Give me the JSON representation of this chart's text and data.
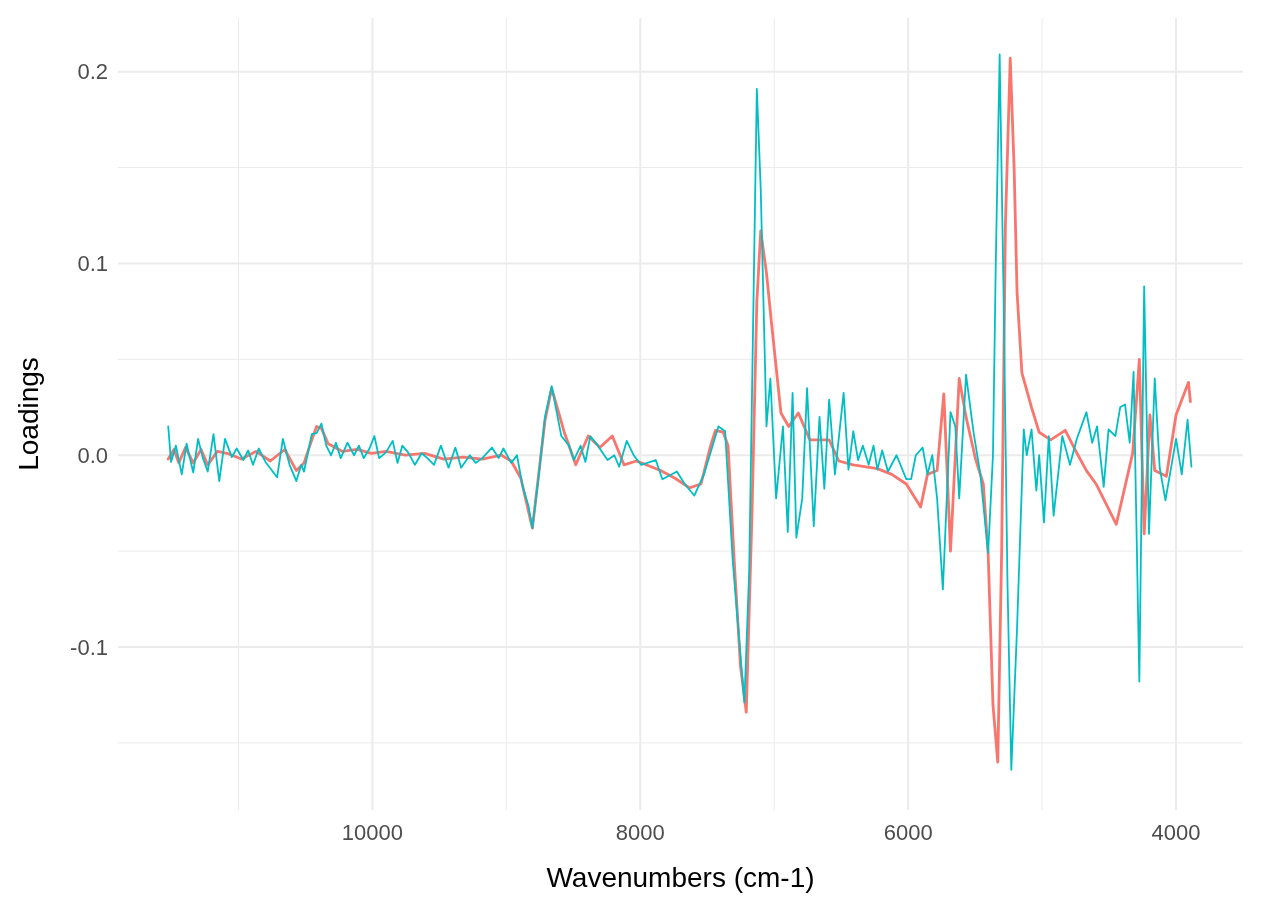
{
  "chart_data": {
    "type": "line",
    "xlabel": "Wavenumbers (cm-1)",
    "ylabel": "Loadings",
    "grid": true,
    "marker": "none",
    "line_style": "solid",
    "xlim": [
      11900,
      3500
    ],
    "ylim": [
      -0.185,
      0.228
    ],
    "xticks": [
      {
        "value": 11000,
        "label": null
      },
      {
        "value": 10000,
        "label": "10000"
      },
      {
        "value": 9000,
        "label": null
      },
      {
        "value": 8000,
        "label": "8000"
      },
      {
        "value": 7000,
        "label": null
      },
      {
        "value": 6000,
        "label": "6000"
      },
      {
        "value": 5000,
        "label": null
      },
      {
        "value": 4000,
        "label": "4000"
      }
    ],
    "yticks": [
      {
        "value": -0.15,
        "label": null
      },
      {
        "value": -0.1,
        "label": "-0.1"
      },
      {
        "value": -0.05,
        "label": null
      },
      {
        "value": 0,
        "label": "0.0"
      },
      {
        "value": 0.05,
        "label": null
      },
      {
        "value": 0.1,
        "label": "0.1"
      },
      {
        "value": 0.15,
        "label": null
      },
      {
        "value": 0.2,
        "label": "0.2"
      }
    ],
    "series": [
      {
        "color": "#f8766d",
        "x": [
          11525,
          11482,
          11446,
          11396,
          11338,
          11280,
          11230,
          11158,
          11086,
          10978,
          10870,
          10763,
          10655,
          10568,
          10511,
          10453,
          10417,
          10381,
          10331,
          10223,
          10115,
          10007,
          9899,
          9755,
          9611,
          9468,
          9324,
          9180,
          9036,
          8964,
          8892,
          8806,
          8712,
          8662,
          8568,
          8482,
          8389,
          8302,
          8209,
          8122,
          8029,
          7957,
          7849,
          7741,
          7633,
          7547,
          7475,
          7439,
          7381,
          7345,
          7295,
          7252,
          7209,
          7166,
          7130,
          7101,
          7058,
          7022,
          6950,
          6892,
          6820,
          6734,
          6590,
          6518,
          6410,
          6230,
          6122,
          6014,
          5907,
          5856,
          5784,
          5734,
          5684,
          5619,
          5568,
          5497,
          5439,
          5403,
          5367,
          5331,
          5302,
          5274,
          5238,
          5209,
          5187,
          5151,
          5079,
          5022,
          4936,
          4827,
          4755,
          4669,
          4597,
          4446,
          4324,
          4274,
          4238,
          4195,
          4159,
          4072,
          4000,
          3907,
          3893
        ],
        "values": [
          -0.002,
          0.003,
          -0.004,
          0.004,
          -0.004,
          0.003,
          -0.005,
          0.002,
          0.001,
          -0.002,
          0.002,
          -0.003,
          0.003,
          -0.008,
          -0.004,
          0.008,
          0.015,
          0.014,
          0.006,
          0.002,
          0.003,
          0.001,
          0.002,
          0,
          0.001,
          -0.002,
          -0.001,
          -0.002,
          0,
          -0.003,
          -0.012,
          -0.038,
          0.018,
          0.035,
          0.012,
          -0.005,
          0.01,
          0.004,
          0.01,
          -0.005,
          -0.003,
          -0.005,
          -0.008,
          -0.012,
          -0.017,
          -0.015,
          0.005,
          0.013,
          0.012,
          0.005,
          -0.06,
          -0.11,
          -0.134,
          -0.03,
          0.08,
          0.117,
          0.095,
          0.07,
          0.022,
          0.015,
          0.022,
          0.008,
          0.008,
          -0.003,
          -0.005,
          -0.007,
          -0.01,
          -0.015,
          -0.027,
          -0.01,
          -0.008,
          0.032,
          -0.05,
          0.04,
          0.02,
          -0.002,
          -0.015,
          -0.051,
          -0.13,
          -0.16,
          -0.05,
          0.12,
          0.207,
          0.15,
          0.085,
          0.043,
          0.025,
          0.012,
          0.008,
          0.013,
          0.003,
          -0.008,
          -0.015,
          -0.036,
          0.001,
          0.05,
          -0.041,
          0.021,
          -0.008,
          -0.011,
          0.021,
          0.038,
          0.028
        ]
      },
      {
        "color": "#00bfc4",
        "x": [
          11525,
          11504,
          11468,
          11424,
          11388,
          11338,
          11302,
          11266,
          11230,
          11187,
          11144,
          11101,
          11050,
          11014,
          10964,
          10928,
          10892,
          10849,
          10799,
          10712,
          10669,
          10619,
          10568,
          10532,
          10511,
          10453,
          10417,
          10381,
          10345,
          10309,
          10273,
          10237,
          10187,
          10137,
          10101,
          10065,
          10022,
          9986,
          9950,
          9899,
          9849,
          9813,
          9777,
          9734,
          9683,
          9633,
          9590,
          9540,
          9489,
          9432,
          9381,
          9338,
          9273,
          9230,
          9180,
          9108,
          9058,
          9022,
          8964,
          8921,
          8878,
          8835,
          8806,
          8763,
          8712,
          8662,
          8590,
          8532,
          8496,
          8446,
          8410,
          8374,
          8317,
          8245,
          8194,
          8158,
          8101,
          8050,
          7993,
          7885,
          7835,
          7727,
          7669,
          7597,
          7525,
          7417,
          7367,
          7310,
          7223,
          7187,
          7130,
          7101,
          7058,
          7029,
          6986,
          6935,
          6899,
          6863,
          6835,
          6791,
          6755,
          6705,
          6662,
          6626,
          6590,
          6547,
          6482,
          6446,
          6410,
          6374,
          6338,
          6295,
          6259,
          6230,
          6194,
          6151,
          6087,
          6014,
          5978,
          5943,
          5892,
          5856,
          5820,
          5784,
          5741,
          5684,
          5648,
          5619,
          5568,
          5511,
          5461,
          5403,
          5367,
          5346,
          5317,
          5288,
          5259,
          5230,
          5187,
          5137,
          5115,
          5079,
          5043,
          5022,
          4986,
          4950,
          4914,
          4849,
          4792,
          4741,
          4669,
          4626,
          4590,
          4540,
          4504,
          4453,
          4417,
          4381,
          4346,
          4317,
          4274,
          4238,
          4202,
          4159,
          4122,
          4079,
          4000,
          3957,
          3914,
          3885
        ],
        "values": [
          0.015,
          -0.0035,
          0.005,
          -0.01,
          0.006,
          -0.009,
          0.0085,
          -0.0015,
          -0.0085,
          0.011,
          -0.0135,
          0.0085,
          -0.001,
          0.0035,
          -0.0025,
          0.0025,
          -0.005,
          0.0035,
          -0.0035,
          -0.0115,
          0.0085,
          -0.005,
          -0.0135,
          -0.005,
          -0.0085,
          0.011,
          0.0115,
          0.0165,
          0.005,
          0,
          0.0065,
          -0.0015,
          0.0065,
          0,
          0.005,
          -0.0015,
          0.0035,
          0.01,
          -0.0015,
          0.0015,
          0.0075,
          -0.004,
          0.005,
          0.0015,
          -0.005,
          0.001,
          -0.0015,
          -0.005,
          0.005,
          -0.0065,
          0.004,
          -0.0065,
          0,
          -0.004,
          -0.0015,
          0.004,
          -0.0015,
          0.0035,
          -0.004,
          0,
          -0.0165,
          -0.0265,
          -0.038,
          -0.0135,
          0.02,
          0.036,
          0.01,
          0.005,
          -0.0025,
          0.005,
          -0.0035,
          0.01,
          0.005,
          -0.0025,
          0,
          -0.006,
          0.0075,
          0,
          -0.005,
          -0.0025,
          -0.0125,
          -0.0085,
          -0.015,
          -0.021,
          -0.01,
          0.015,
          0.0125,
          -0.055,
          -0.129,
          -0.06,
          0.191,
          0.139,
          0.015,
          0.04,
          -0.0225,
          0.015,
          -0.04,
          0.0325,
          -0.043,
          -0.0225,
          0.035,
          -0.037,
          0.02,
          -0.0175,
          0.029,
          -0.01,
          0.0325,
          -0.0075,
          0.0125,
          -0.0025,
          0.005,
          -0.005,
          0.005,
          -0.0075,
          0.0025,
          -0.0085,
          0,
          -0.0125,
          -0.0125,
          0,
          0.004,
          -0.01,
          0,
          -0.0225,
          -0.07,
          0.0225,
          0.015,
          -0.0225,
          0.042,
          0.0115,
          -0.01,
          -0.051,
          0,
          0.1,
          0.209,
          0.085,
          -0.065,
          -0.164,
          -0.09,
          0.0135,
          0,
          0.0135,
          -0.0185,
          0,
          -0.035,
          0.01,
          -0.0315,
          0.01,
          -0.005,
          0.0085,
          0.0225,
          0.0065,
          0.015,
          -0.0165,
          0.0135,
          0.01,
          0.025,
          0.0265,
          0.0065,
          0.0435,
          -0.118,
          0.088,
          -0.041,
          0.04,
          -0.0065,
          -0.0235,
          0.0085,
          -0.01,
          0.0185,
          -0.006
        ]
      }
    ]
  }
}
